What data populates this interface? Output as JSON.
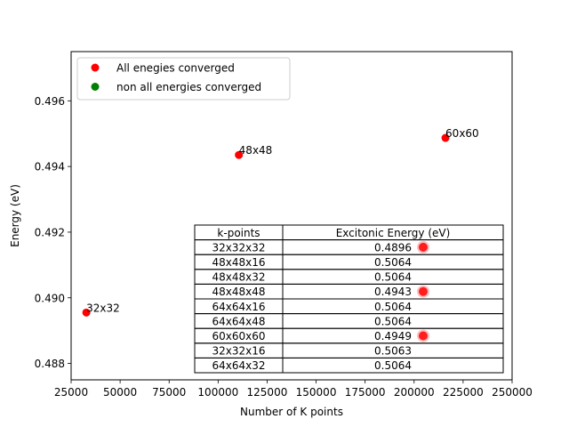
{
  "chart_data": {
    "type": "scatter",
    "xlabel": "Number of K points",
    "ylabel": "Energy (eV)",
    "xlim": [
      25000,
      250000
    ],
    "ylim": [
      0.4875,
      0.4975
    ],
    "x_ticks": [
      25000,
      50000,
      75000,
      100000,
      125000,
      150000,
      175000,
      200000,
      225000,
      250000
    ],
    "x_tick_labels": [
      "25000",
      "50000",
      "75000",
      "100000",
      "125000",
      "150000",
      "175000",
      "200000",
      "225000",
      "250000"
    ],
    "y_ticks": [
      0.488,
      0.49,
      0.492,
      0.494,
      0.496
    ],
    "y_tick_labels": [
      "0.488",
      "0.490",
      "0.492",
      "0.494",
      "0.496"
    ],
    "grid": false,
    "legend_position": "upper-left",
    "legend": [
      {
        "label": "All enegies converged",
        "color": "#ff0000"
      },
      {
        "label": "non all energies converged",
        "color": "#008000"
      }
    ],
    "series": [
      {
        "name": "All enegies converged",
        "color": "#ff0000",
        "points": [
          {
            "x": 32768,
            "y": 0.48955,
            "label": "32x32"
          },
          {
            "x": 110592,
            "y": 0.49435,
            "label": "48x48"
          },
          {
            "x": 216000,
            "y": 0.49487,
            "label": "60x60"
          }
        ]
      },
      {
        "name": "non all energies converged",
        "color": "#008000",
        "points": []
      }
    ],
    "table": {
      "headers": [
        "k-points",
        "Excitonic Energy (eV)"
      ],
      "rows": [
        {
          "kpoints": "32x32x32",
          "energy": "0.4896",
          "highlight": true
        },
        {
          "kpoints": "48x48x16",
          "energy": "0.5064",
          "highlight": false
        },
        {
          "kpoints": "48x48x32",
          "energy": "0.5064",
          "highlight": false
        },
        {
          "kpoints": "48x48x48",
          "energy": "0.4943",
          "highlight": true
        },
        {
          "kpoints": "64x64x16",
          "energy": "0.5064",
          "highlight": false
        },
        {
          "kpoints": "64x64x48",
          "energy": "0.5064",
          "highlight": false
        },
        {
          "kpoints": "60x60x60",
          "energy": "0.4949",
          "highlight": true
        },
        {
          "kpoints": "32x32x16",
          "energy": "0.5063",
          "highlight": false
        },
        {
          "kpoints": "64x64x32",
          "energy": "0.5064",
          "highlight": false
        }
      ]
    }
  }
}
